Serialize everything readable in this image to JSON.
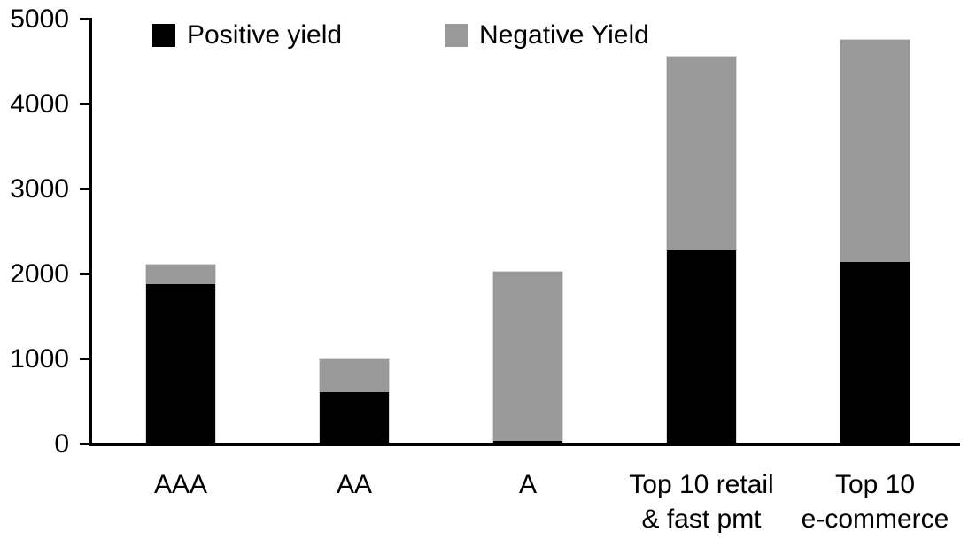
{
  "chart_data": {
    "type": "bar",
    "stacked": true,
    "title": "",
    "xlabel": "",
    "ylabel": "",
    "categories": [
      "AAA",
      "AA",
      "A",
      "Top 10 retail\n& fast pmt",
      "Top 10\ne-commerce"
    ],
    "series": [
      {
        "name": "Positive yield",
        "color": "#000000",
        "values": [
          1890,
          615,
          40,
          2280,
          2145
        ]
      },
      {
        "name": "Negative Yield",
        "color": "#999999",
        "values": [
          225,
          385,
          1990,
          2280,
          2615
        ]
      }
    ],
    "totals": [
      2115,
      1000,
      2030,
      4560,
      4760
    ],
    "ylim": [
      0,
      5000
    ],
    "yticks": [
      0,
      1000,
      2000,
      3000,
      4000,
      5000
    ],
    "grid": false,
    "legend_position": "top"
  },
  "colors": {
    "axis": "#000000",
    "background": "#ffffff",
    "positive_series": "#000000",
    "negative_series": "#999999"
  }
}
